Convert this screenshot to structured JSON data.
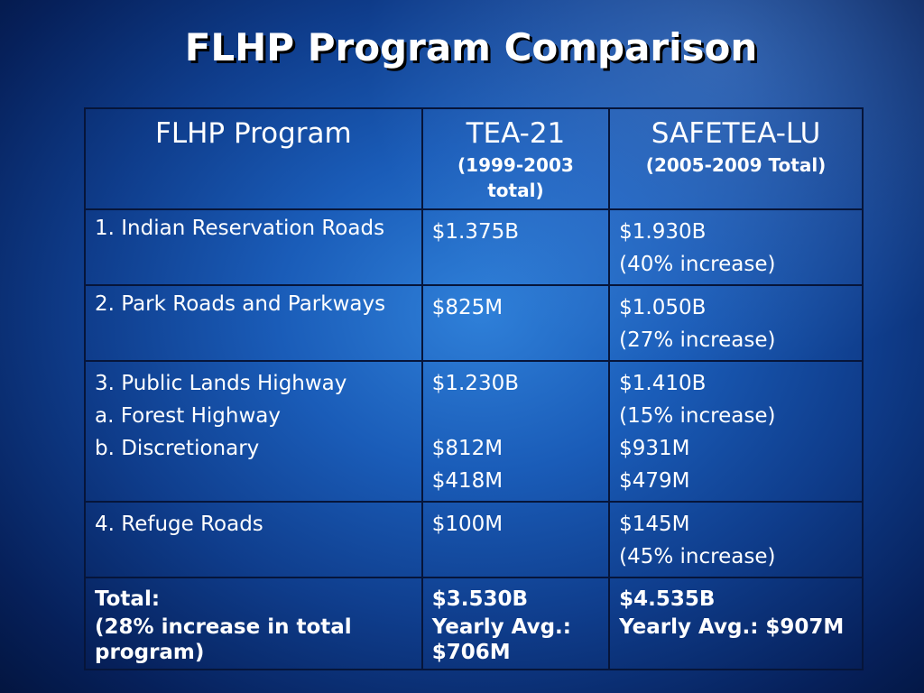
{
  "title": "FLHP Program Comparison",
  "table": {
    "headers": [
      {
        "label": "FLHP Program",
        "sub": ""
      },
      {
        "label": "TEA-21",
        "sub": "(1999-2003 total)"
      },
      {
        "label": "SAFETEA-LU",
        "sub": "(2005-2009 Total)"
      }
    ],
    "rows": [
      {
        "program": [
          "1.  Indian Reservation Roads"
        ],
        "tea21": [
          "$1.375B"
        ],
        "safetea": [
          "$1.930B",
          "(40% increase)"
        ]
      },
      {
        "program": [
          "2.  Park Roads and Parkways"
        ],
        "tea21": [
          "$825M"
        ],
        "safetea": [
          "$1.050B",
          "(27% increase)"
        ]
      },
      {
        "program": [
          "3.  Public Lands Highway",
          "a.  Forest Highway",
          "b.  Discretionary"
        ],
        "tea21": [
          "$1.230B",
          "",
          "$812M",
          "$418M"
        ],
        "safetea": [
          "$1.410B",
          "(15% increase)",
          "$931M",
          "$479M"
        ]
      },
      {
        "program": [
          "4.  Refuge Roads"
        ],
        "tea21": [
          "$100M"
        ],
        "safetea": [
          "$145M",
          "(45% increase)"
        ]
      }
    ],
    "total": {
      "program": [
        "Total:",
        "(28% increase in total program)"
      ],
      "tea21": [
        "$3.530B",
        "Yearly Avg.: $706M"
      ],
      "safetea": [
        "$4.535B",
        "Yearly Avg.: $907M"
      ]
    }
  }
}
